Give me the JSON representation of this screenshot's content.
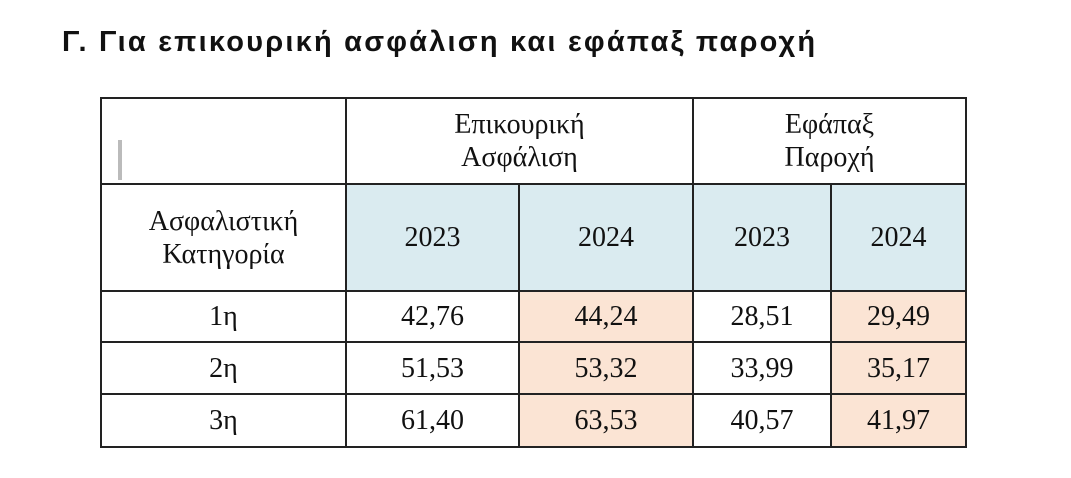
{
  "header": {
    "title": "Γ. Για επικουρική ασφάλιση και εφάπαξ παροχή"
  },
  "table": {
    "groups": [
      {
        "lines": [
          "Επικουρική",
          "Ασφάλιση"
        ]
      },
      {
        "lines": [
          "Εφάπαξ",
          "Παροχή"
        ]
      }
    ],
    "row_header": {
      "lines": [
        "Ασφαλιστική",
        "Κατηγορία"
      ]
    },
    "years": [
      "2023",
      "2024",
      "2023",
      "2024"
    ],
    "rows": [
      [
        "1η",
        "42,76",
        "44,24",
        "28,51",
        "29,49"
      ],
      [
        "2η",
        "51,53",
        "53,32",
        "33,99",
        "35,17"
      ],
      [
        "3η",
        "61,40",
        "63,53",
        "40,57",
        "41,97"
      ]
    ]
  }
}
